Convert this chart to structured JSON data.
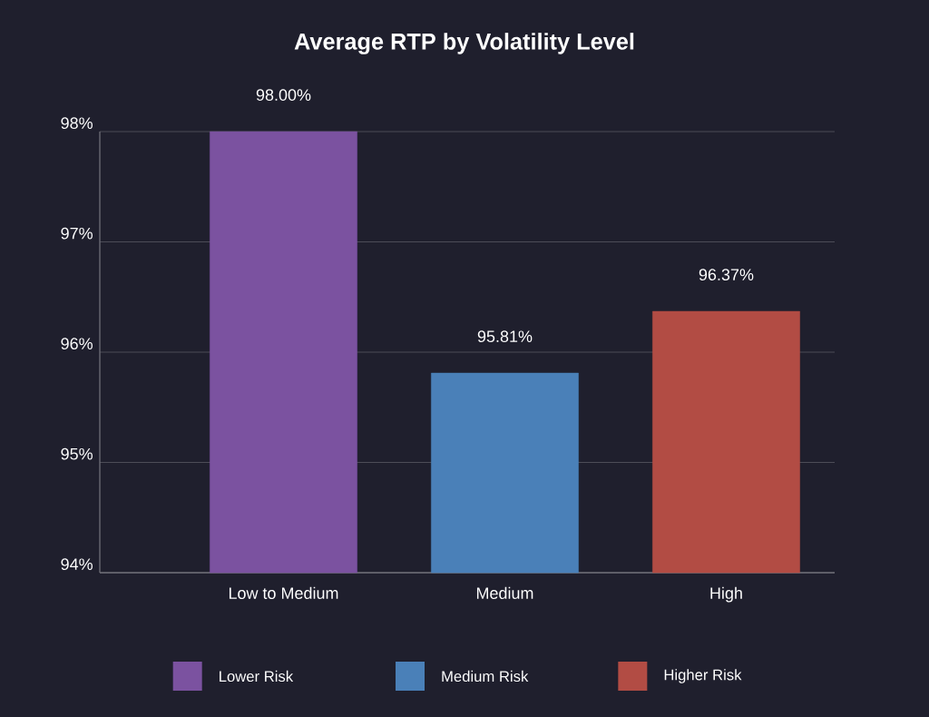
{
  "chart_data": {
    "type": "bar",
    "title": "Average RTP by Volatility Level",
    "categories": [
      "Low to Medium",
      "Medium",
      "High"
    ],
    "series": [
      {
        "name": "Lower Risk",
        "color": "#7b52a0",
        "values": [
          98.0,
          null,
          null
        ],
        "value_labels": [
          "98.00%",
          null,
          null
        ]
      },
      {
        "name": "Medium Risk",
        "color": "#4a80b8",
        "values": [
          null,
          95.81,
          null
        ],
        "value_labels": [
          null,
          "95.81%",
          null
        ]
      },
      {
        "name": "Higher Risk",
        "color": "#b24c44",
        "values": [
          null,
          null,
          96.37
        ],
        "value_labels": [
          null,
          null,
          "96.37%"
        ]
      }
    ],
    "ylim": [
      94,
      98
    ],
    "yticks": [
      {
        "value": 94,
        "label": "94%"
      },
      {
        "value": 95,
        "label": "95%"
      },
      {
        "value": 96,
        "label": "96%"
      },
      {
        "value": 97,
        "label": "97%"
      },
      {
        "value": 98,
        "label": "98%"
      }
    ],
    "grid": "y",
    "legend": "bottom"
  }
}
